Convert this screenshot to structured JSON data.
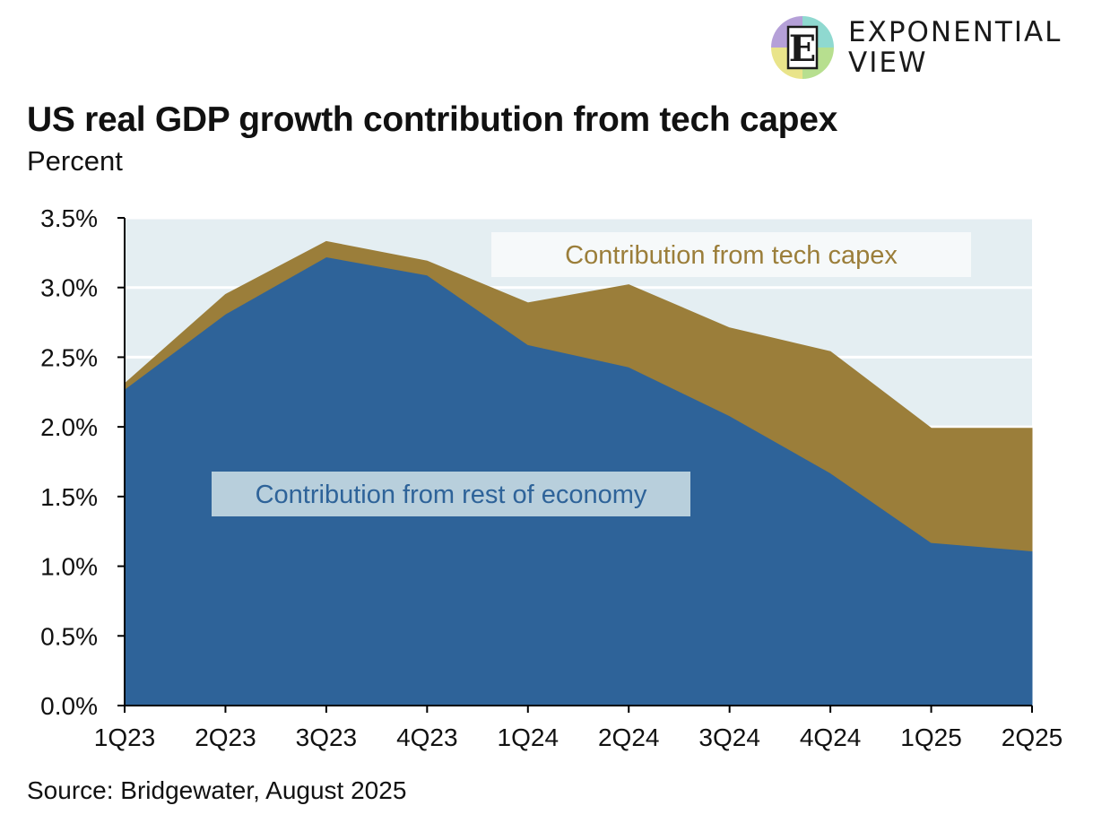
{
  "brand": {
    "logo_icon": "exponential-view-logo-icon",
    "logo_letter": "E",
    "line1": "EXPONENTIAL",
    "line2": "VIEW"
  },
  "title": "US real GDP growth contribution from tech capex",
  "subtitle": "Percent",
  "source": "Source: Bridgewater, August 2025",
  "chart_data": {
    "type": "area",
    "stacked": true,
    "title": "US real GDP growth contribution from tech capex",
    "subtitle": "Percent",
    "categories": [
      "1Q23",
      "2Q23",
      "3Q23",
      "4Q23",
      "1Q24",
      "2Q24",
      "3Q24",
      "4Q24",
      "1Q25",
      "2Q25"
    ],
    "series": [
      {
        "name": "Contribution from rest of economy",
        "color": "#2e6399",
        "values": [
          2.27,
          2.81,
          3.22,
          3.09,
          2.59,
          2.43,
          2.08,
          1.67,
          1.17,
          1.11
        ]
      },
      {
        "name": "Contribution from tech capex",
        "color": "#9b7e3a",
        "values": [
          0.04,
          0.14,
          0.11,
          0.1,
          0.3,
          0.59,
          0.63,
          0.87,
          0.82,
          0.88
        ]
      }
    ],
    "ylim": [
      0,
      3.5
    ],
    "yticks": [
      0,
      0.5,
      1.0,
      1.5,
      2.0,
      2.5,
      3.0,
      3.5
    ],
    "ytick_labels": [
      "0.0%",
      "0.5%",
      "1.0%",
      "1.5%",
      "2.0%",
      "2.5%",
      "3.0%",
      "3.5%"
    ],
    "grid": true,
    "plot_background": "#e4eef2",
    "label_text_colors": [
      "#2e6399",
      "#9b7e3a"
    ],
    "label_box_colors": [
      "#b8cfdc",
      "#f6f9fa"
    ]
  }
}
